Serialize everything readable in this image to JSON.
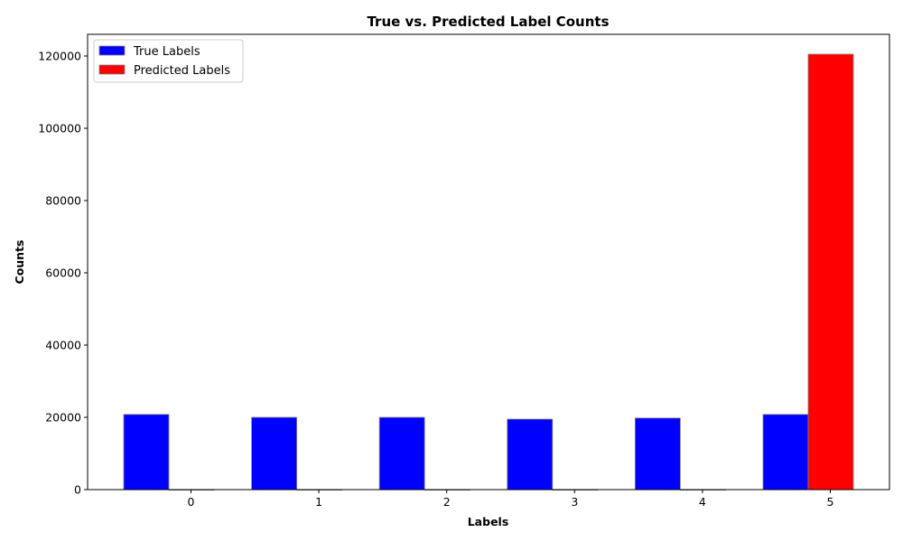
{
  "chart_data": {
    "type": "bar",
    "title": "True vs. Predicted Label Counts",
    "xlabel": "Labels",
    "ylabel": "Counts",
    "categories": [
      "0",
      "1",
      "2",
      "3",
      "4",
      "5"
    ],
    "ylim": [
      0,
      126000
    ],
    "yticks": [
      0,
      20000,
      40000,
      60000,
      80000,
      100000,
      120000
    ],
    "legend_position": "upper-left",
    "grid": false,
    "series": [
      {
        "name": "True Labels",
        "color": "#0000ff",
        "values": [
          20800,
          20000,
          20000,
          19500,
          19800,
          20800
        ]
      },
      {
        "name": "Predicted Labels",
        "color": "#ff0000",
        "values": [
          0,
          0,
          0,
          0,
          0,
          120500
        ]
      }
    ]
  }
}
